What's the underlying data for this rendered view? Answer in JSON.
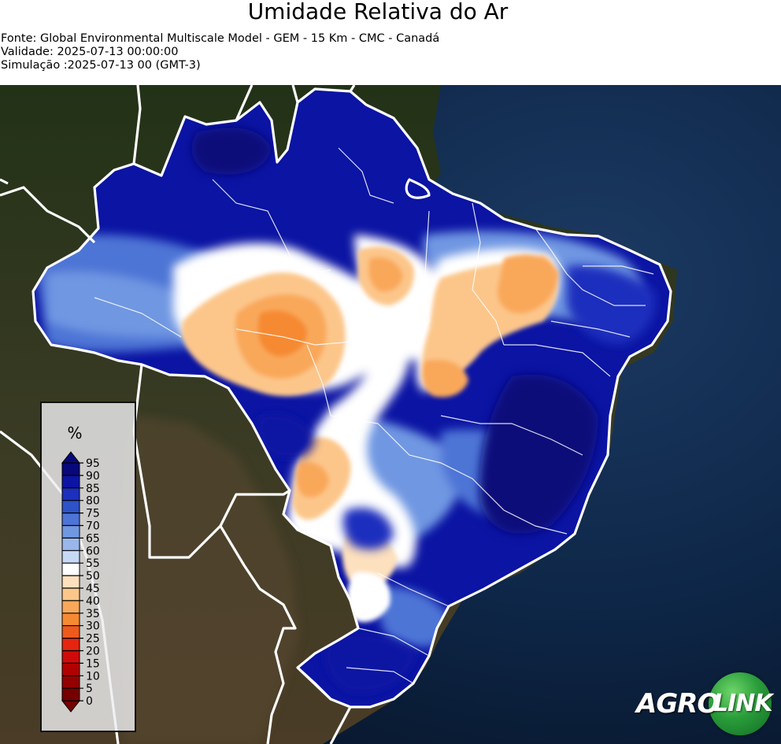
{
  "header": {
    "title": "Umidade Relativa do Ar",
    "source": "Fonte: Global Environmental Multiscale Model - GEM - 15 Km - CMC - Canadá",
    "validity": "Validade: 2025-07-13 00:00:00",
    "simulation": "Simulação :2025-07-13 00 (GMT-3)"
  },
  "legend": {
    "unit": "%",
    "ticks": [
      "95",
      "90",
      "85",
      "80",
      "75",
      "70",
      "65",
      "60",
      "55",
      "50",
      "45",
      "40",
      "35",
      "30",
      "25",
      "20",
      "15",
      "10",
      "5",
      "0"
    ],
    "colors": [
      "#08087a",
      "#0b14a3",
      "#1c2fbd",
      "#2e52c8",
      "#4d74d6",
      "#7097e2",
      "#9ab7ec",
      "#c7d8f5",
      "#ffffff",
      "#fde0bd",
      "#fcc68a",
      "#f9a85a",
      "#f68a33",
      "#ee5a1c",
      "#e5250f",
      "#cf0a0a",
      "#b20000",
      "#940000",
      "#760000"
    ]
  },
  "logo": {
    "part1": "AGRO",
    "part2": "LINK",
    "colors": [
      "#ffffff",
      "#2a9d3a"
    ]
  },
  "map_colors": {
    "ocean": "#0d2545",
    "land": "#2a3320",
    "very_humid": "#0b14a3",
    "humid": "#4d74d6",
    "moderate": "#9ab7ec",
    "neutral": "#ffffff",
    "dry": "#fcc68a",
    "drier": "#f68a33",
    "border": "#ffffff"
  }
}
